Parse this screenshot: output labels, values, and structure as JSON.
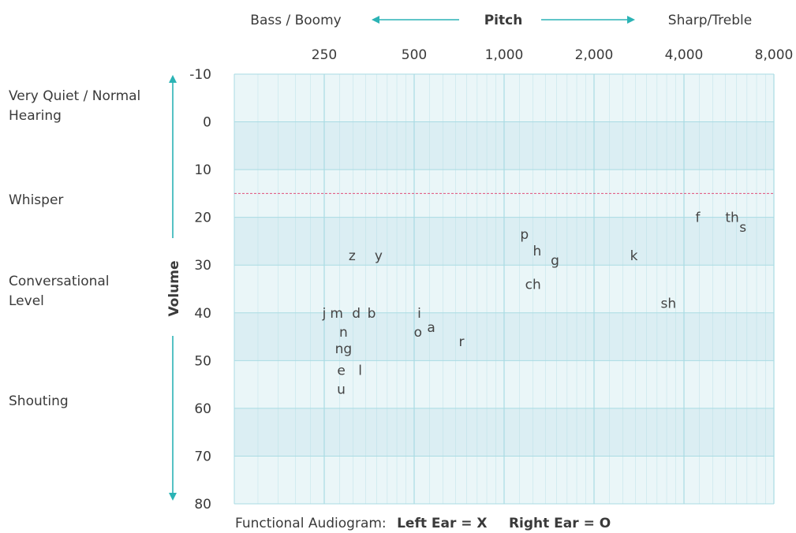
{
  "chart_data": {
    "type": "scatter",
    "title": "Functional Audiogram:",
    "legend": {
      "left": "Left Ear = X",
      "right": "Right Ear = O"
    },
    "x_axis": {
      "title": "Pitch",
      "left_label": "Bass / Boomy",
      "right_label": "Sharp/Treble",
      "scale": "log",
      "ticks": [
        250,
        500,
        1000,
        2000,
        4000,
        8000
      ],
      "tick_labels": [
        "250",
        "500",
        "1,000",
        "2,000",
        "4,000",
        "8,000"
      ],
      "range": [
        125,
        8000
      ]
    },
    "y_axis": {
      "title": "Volume",
      "ticks": [
        -10,
        0,
        10,
        20,
        30,
        40,
        50,
        60,
        70,
        80
      ],
      "range": [
        -10,
        80
      ],
      "inverted": true
    },
    "level_labels": [
      {
        "text": "Very Quiet / Normal Hearing",
        "lines": [
          "Very Quiet / Normal",
          "Hearing"
        ]
      },
      {
        "text": "Whisper",
        "lines": [
          "Whisper"
        ]
      },
      {
        "text": "Conversational Level",
        "lines": [
          "Conversational",
          "Level"
        ]
      },
      {
        "text": "Shouting",
        "lines": [
          "Shouting"
        ]
      }
    ],
    "reference_line": {
      "y": 15,
      "style": "dotted",
      "color": "#e0507a"
    },
    "speech_sounds": [
      {
        "label": "z",
        "x": 310,
        "y": 28
      },
      {
        "label": "y",
        "x": 380,
        "y": 28
      },
      {
        "label": "j",
        "x": 250,
        "y": 40
      },
      {
        "label": "m",
        "x": 275,
        "y": 40
      },
      {
        "label": "d",
        "x": 320,
        "y": 40
      },
      {
        "label": "b",
        "x": 360,
        "y": 40
      },
      {
        "label": "n",
        "x": 290,
        "y": 44
      },
      {
        "label": "ng",
        "x": 290,
        "y": 47.5
      },
      {
        "label": "e",
        "x": 285,
        "y": 52
      },
      {
        "label": "l",
        "x": 330,
        "y": 52
      },
      {
        "label": "u",
        "x": 285,
        "y": 56
      },
      {
        "label": "i",
        "x": 520,
        "y": 40
      },
      {
        "label": "o",
        "x": 515,
        "y": 44
      },
      {
        "label": "a",
        "x": 570,
        "y": 43
      },
      {
        "label": "r",
        "x": 720,
        "y": 46
      },
      {
        "label": "p",
        "x": 1170,
        "y": 23.5
      },
      {
        "label": "h",
        "x": 1290,
        "y": 27
      },
      {
        "label": "g",
        "x": 1480,
        "y": 29
      },
      {
        "label": "ch",
        "x": 1250,
        "y": 34
      },
      {
        "label": "k",
        "x": 2720,
        "y": 28
      },
      {
        "label": "sh",
        "x": 3550,
        "y": 38
      },
      {
        "label": "f",
        "x": 4450,
        "y": 20
      },
      {
        "label": "th",
        "x": 5800,
        "y": 20
      },
      {
        "label": "s",
        "x": 6300,
        "y": 22
      }
    ],
    "colors": {
      "band_light": "#eaf6f8",
      "band_dark": "#dbeef3",
      "grid": "#a9dbe3",
      "arrow": "#2bb3b5",
      "reference": "#e0507a",
      "text": "#3a3a3a"
    },
    "grid": true
  }
}
